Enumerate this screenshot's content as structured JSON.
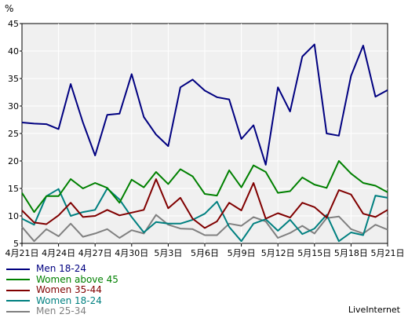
{
  "chart_data": {
    "type": "line",
    "unit_label": "%",
    "ylim": [
      5,
      45
    ],
    "yticks": [
      5,
      10,
      15,
      20,
      25,
      30,
      35,
      40,
      45
    ],
    "grid": true,
    "legend_placement": "bottom-left",
    "x": [
      "4月21日",
      "4月22日",
      "4月23日",
      "4月24日",
      "4月25日",
      "4月26日",
      "4月27日",
      "4月28日",
      "4月29日",
      "4月30日",
      "5月1日",
      "5月2日",
      "5月3日",
      "5月4日",
      "5月5日",
      "5月6日",
      "5月7日",
      "5月8日",
      "5月9日",
      "5月10日",
      "5月11日",
      "5月12日",
      "5月13日",
      "5月14日",
      "5月15日",
      "5月16日",
      "5月17日",
      "5月18日",
      "5月19日",
      "5月20日",
      "5月21日"
    ],
    "xticks": [
      {
        "index": 0,
        "label": "4月21日"
      },
      {
        "index": 3,
        "label": "4月24日"
      },
      {
        "index": 6,
        "label": "4月27日"
      },
      {
        "index": 9,
        "label": "4月30日"
      },
      {
        "index": 12,
        "label": "5月3日"
      },
      {
        "index": 15,
        "label": "5月6日"
      },
      {
        "index": 18,
        "label": "5月9日"
      },
      {
        "index": 21,
        "label": "5月12日"
      },
      {
        "index": 24,
        "label": "5月15日"
      },
      {
        "index": 27,
        "label": "5月18日"
      },
      {
        "index": 30,
        "label": "5月21日"
      }
    ],
    "series": [
      {
        "name": "Men 18-24",
        "color": "#000080",
        "values": [
          27.0,
          26.8,
          26.7,
          25.8,
          34.0,
          27.0,
          21.0,
          28.4,
          28.6,
          35.8,
          28.0,
          24.8,
          22.7,
          33.4,
          34.8,
          32.8,
          31.6,
          31.2,
          24.0,
          26.5,
          19.3,
          33.4,
          29.0,
          39.0,
          41.2,
          25.0,
          24.6,
          35.5,
          41.0,
          31.7,
          32.9
        ]
      },
      {
        "name": "Women above 45",
        "color": "#008000",
        "values": [
          14.2,
          10.7,
          13.6,
          13.6,
          16.7,
          15.0,
          16.0,
          15.1,
          12.4,
          16.6,
          15.2,
          18.0,
          15.8,
          18.5,
          17.2,
          14.0,
          13.7,
          18.3,
          15.2,
          19.2,
          18.0,
          14.2,
          14.5,
          17.0,
          15.7,
          15.1,
          20.0,
          17.7,
          16.0,
          15.5,
          14.3
        ]
      },
      {
        "name": "Women 35-44",
        "color": "#800000",
        "values": [
          11.0,
          8.8,
          8.5,
          10.1,
          12.4,
          9.8,
          10.0,
          11.1,
          10.1,
          10.6,
          11.1,
          16.7,
          11.4,
          13.3,
          9.5,
          7.8,
          9.0,
          12.4,
          11.0,
          16.0,
          9.5,
          10.5,
          9.7,
          12.4,
          11.6,
          9.7,
          14.7,
          13.9,
          10.4,
          9.8,
          11.1
        ]
      },
      {
        "name": "Women 18-24",
        "color": "#008080",
        "values": [
          9.5,
          8.4,
          13.6,
          14.9,
          10.0,
          10.7,
          11.1,
          15.0,
          13.0,
          9.8,
          7.0,
          8.9,
          8.6,
          8.6,
          9.3,
          10.4,
          12.6,
          8.0,
          5.4,
          8.6,
          9.4,
          7.3,
          9.3,
          6.7,
          7.7,
          10.2,
          5.4,
          7.0,
          6.5,
          13.7,
          13.3
        ]
      },
      {
        "name": "Men 25-34",
        "color": "#808080",
        "values": [
          8.0,
          5.4,
          7.6,
          6.3,
          8.6,
          6.2,
          6.8,
          7.6,
          6.0,
          7.4,
          6.8,
          10.2,
          8.4,
          7.7,
          7.6,
          6.5,
          6.5,
          8.6,
          8.2,
          9.8,
          9.0,
          6.0,
          6.9,
          8.2,
          6.8,
          9.6,
          9.9,
          7.6,
          6.8,
          8.4,
          7.5
        ]
      }
    ]
  },
  "watermark": "LiveInternet"
}
